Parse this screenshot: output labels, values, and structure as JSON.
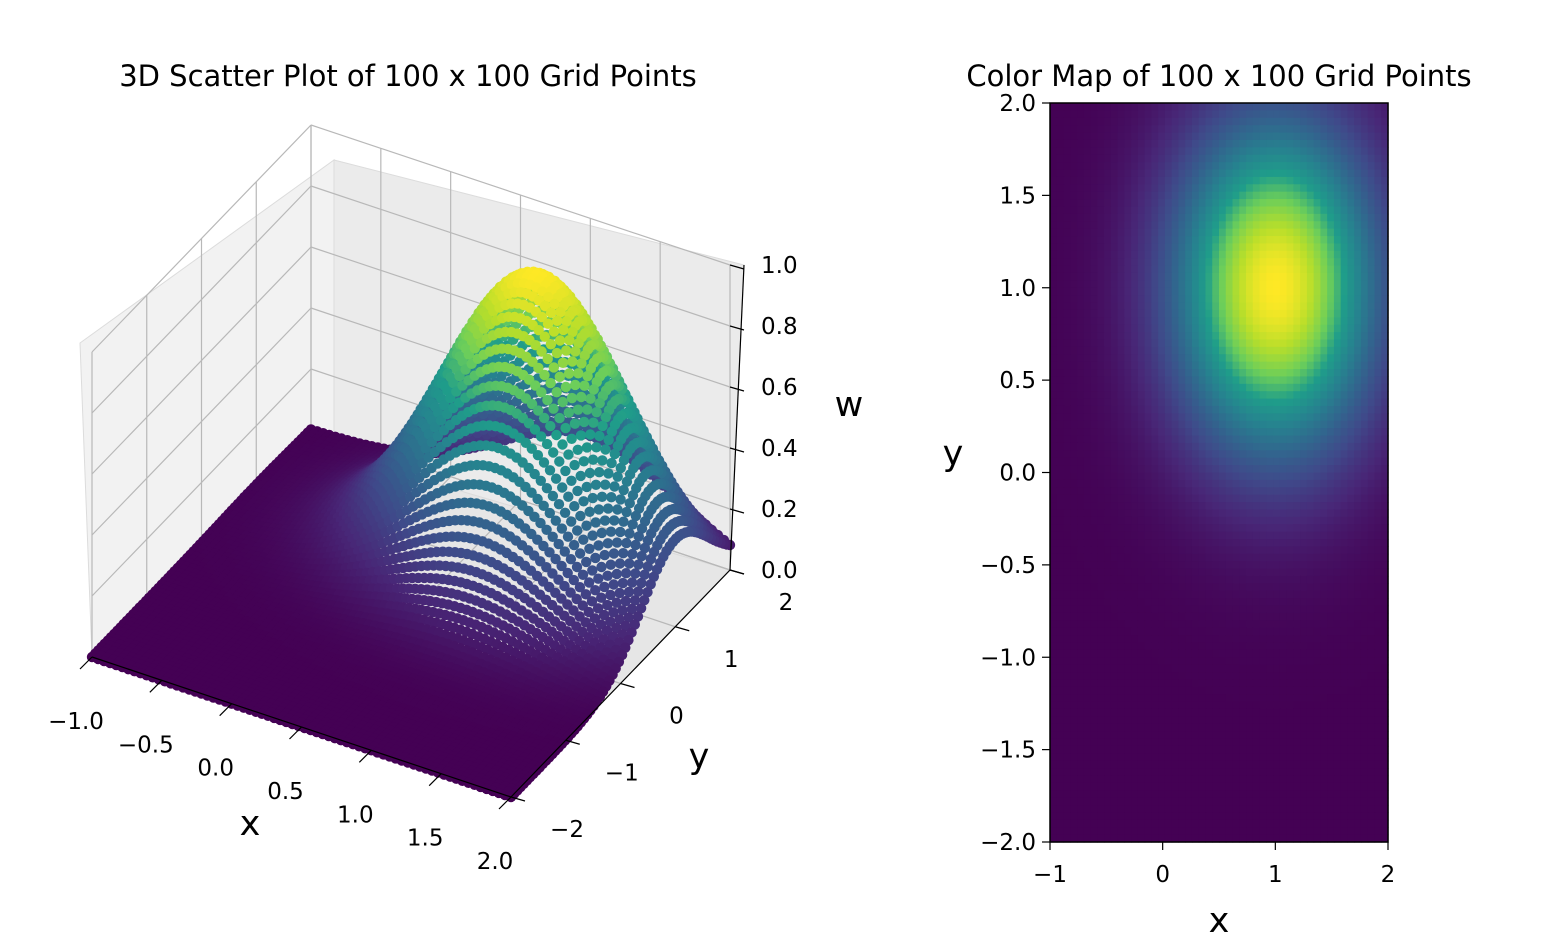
{
  "chart_data": [
    {
      "type": "scatter3d",
      "title": "3D Scatter Plot of 100 x 100 Grid Points",
      "xlabel": "x",
      "ylabel": "y",
      "zlabel": "w",
      "xlim": [
        -1,
        2
      ],
      "ylim": [
        -2,
        2
      ],
      "zlim": [
        0,
        1
      ],
      "x_ticks": [
        "−1.0",
        "−0.5",
        "0.0",
        "0.5",
        "1.0",
        "1.5",
        "2.0"
      ],
      "y_ticks": [
        "−2",
        "−1",
        "0",
        "1",
        "2"
      ],
      "z_ticks": [
        "0.0",
        "0.2",
        "0.4",
        "0.6",
        "0.8",
        "1.0"
      ],
      "grid": true,
      "colormap": "viridis",
      "grid_points": [
        100,
        100
      ],
      "function": "w = exp(-((x-1)^2 + (y-1)^2) / 0.8)",
      "peak": {
        "x": 1,
        "y": 1,
        "w": 1.0
      }
    },
    {
      "type": "heatmap",
      "title": "Color Map of 100 x 100 Grid Points",
      "xlabel": "x",
      "ylabel": "y",
      "xlim": [
        -1,
        2
      ],
      "ylim": [
        -2,
        2
      ],
      "x_ticks": [
        "−1",
        "0",
        "1",
        "2"
      ],
      "y_ticks": [
        "−2.0",
        "−1.5",
        "−1.0",
        "−0.5",
        "0.0",
        "0.5",
        "1.0",
        "1.5",
        "2.0"
      ],
      "colormap": "viridis",
      "grid_points": [
        100,
        100
      ],
      "peak": {
        "x": 1,
        "y": 1,
        "w": 1.0
      }
    }
  ],
  "colors": {
    "viridis": [
      "#440154",
      "#482777",
      "#3f4a8a",
      "#31678e",
      "#26838f",
      "#1f9d8a",
      "#6cce5a",
      "#b6de2b",
      "#fee825"
    ],
    "pane": "#f2f2f2",
    "gridline": "#b0b0b0",
    "axis": "#000000"
  }
}
